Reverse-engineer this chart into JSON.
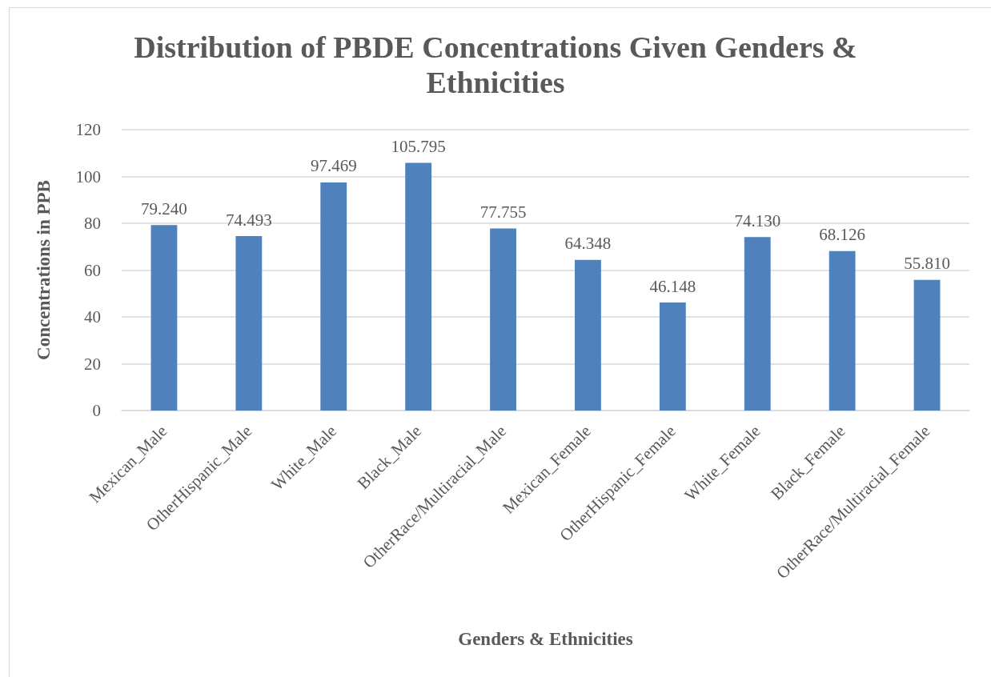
{
  "chart_data": {
    "type": "bar",
    "title": "Distribution of PBDE Concentrations Given Genders & Ethnicities",
    "xlabel": "Genders & Ethnicities",
    "ylabel": "Concentrations in PPB",
    "categories": [
      "Mexican_Male",
      "OtherHispanic_Male",
      "White_Male",
      "Black_Male",
      "OtherRace/Multiracial_Male",
      "Mexican_Female",
      "OtherHispanic_Female",
      "White_Female",
      "Black_Female",
      "OtherRace/Multiracial_Female"
    ],
    "values": [
      79.24,
      74.493,
      97.469,
      105.795,
      77.755,
      64.348,
      46.148,
      74.13,
      68.126,
      55.81
    ],
    "value_labels": [
      "79.240",
      "74.493",
      "97.469",
      "105.795",
      "77.755",
      "64.348",
      "46.148",
      "74.130",
      "68.126",
      "55.810"
    ],
    "color": "#4f81bd",
    "ylim": [
      0,
      120
    ],
    "yticks": [
      0,
      20,
      40,
      60,
      80,
      100,
      120
    ],
    "grid": "y"
  }
}
